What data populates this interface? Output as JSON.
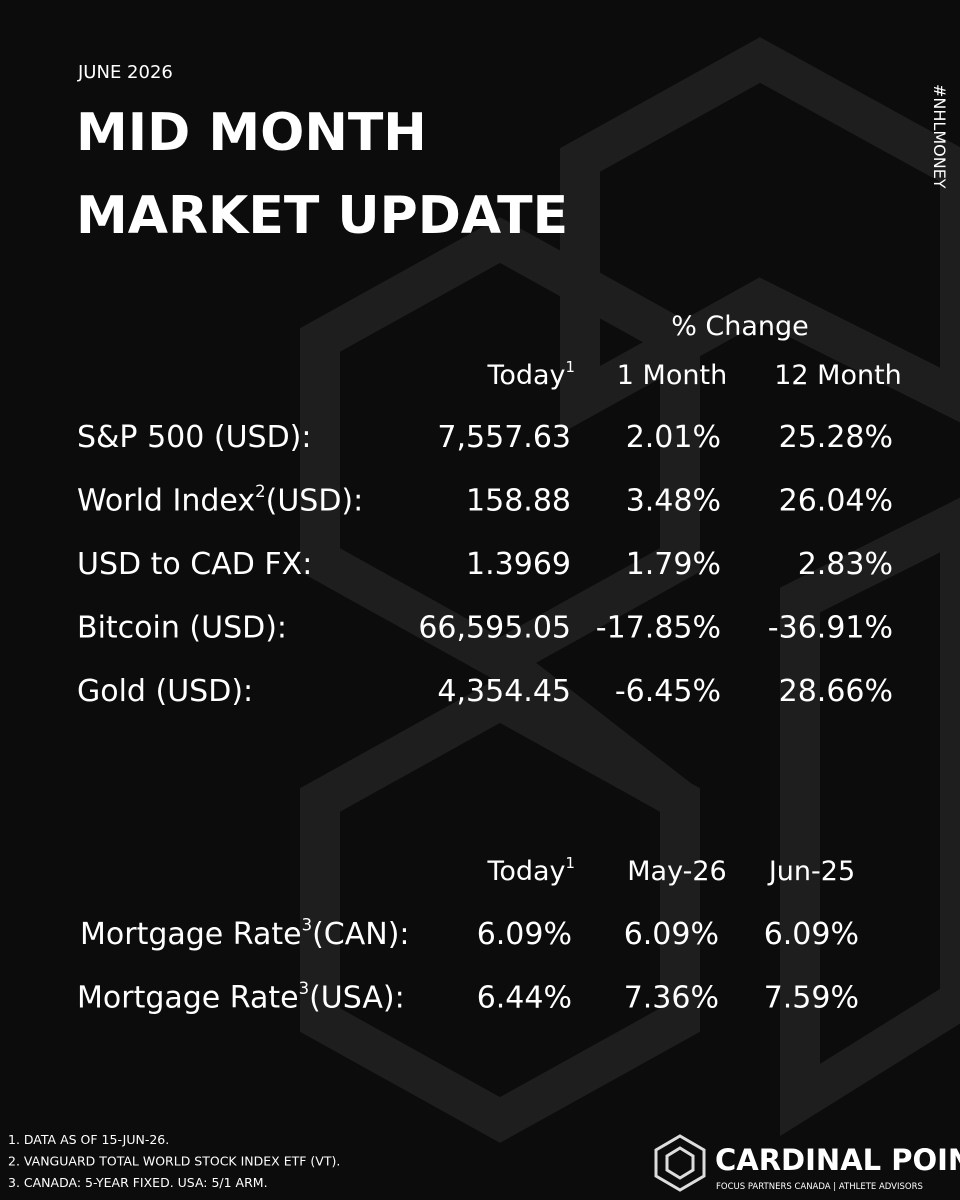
{
  "header": {
    "date": "JUNE 2026",
    "title_lines": [
      "MID MONTH",
      "MARKET UPDATE"
    ],
    "hashtag": "#NHLMONEY"
  },
  "markets": {
    "group_label": "% Change",
    "columns": [
      {
        "text": "Today",
        "note": "1"
      },
      {
        "text": "1 Month"
      },
      {
        "text": "12 Month"
      }
    ],
    "rows": [
      {
        "label": "S&P 500 (USD):",
        "cells": [
          "7,557.63",
          "2.01%",
          "25.28%"
        ]
      },
      {
        "label": "World Index",
        "note": "2",
        "suffix": "(USD):",
        "cells": [
          "158.88",
          "3.48%",
          "26.04%"
        ]
      },
      {
        "label": "USD to CAD FX:",
        "cells": [
          "1.3969",
          "1.79%",
          "2.83%"
        ]
      },
      {
        "label": "Bitcoin (USD):",
        "cells": [
          "66,595.05",
          "-17.85%",
          "-36.91%"
        ]
      },
      {
        "label": "Gold (USD):",
        "cells": [
          "4,354.45",
          "-6.45%",
          "28.66%"
        ]
      }
    ],
    "colors": {
      "up": "#2fb565",
      "down": "#e3262b"
    }
  },
  "mortgage": {
    "columns": [
      {
        "text": "Today",
        "note": "1"
      },
      {
        "text": "May-26"
      },
      {
        "text": "Jun-25"
      }
    ],
    "rows": [
      {
        "label": "Mortgage Rate",
        "note": "3",
        "suffix": "(CAN):",
        "cells": [
          "6.09%",
          "6.09%",
          "6.09%"
        ]
      },
      {
        "label": "Mortgage Rate",
        "note": "3",
        "suffix": "(USA):",
        "cells": [
          "6.44%",
          "7.36%",
          "7.59%"
        ]
      }
    ]
  },
  "footnotes": [
    "1. DATA AS OF 15-JUN-26.",
    "2. VANGUARD TOTAL WORLD STOCK INDEX ETF (VT).",
    "3. CANADA: 5-YEAR FIXED. USA: 5/1 ARM."
  ],
  "brand": {
    "name": "CARDINAL POINT",
    "tagline": "FOCUS PARTNERS CANADA | ATHLETE ADVISORS"
  }
}
